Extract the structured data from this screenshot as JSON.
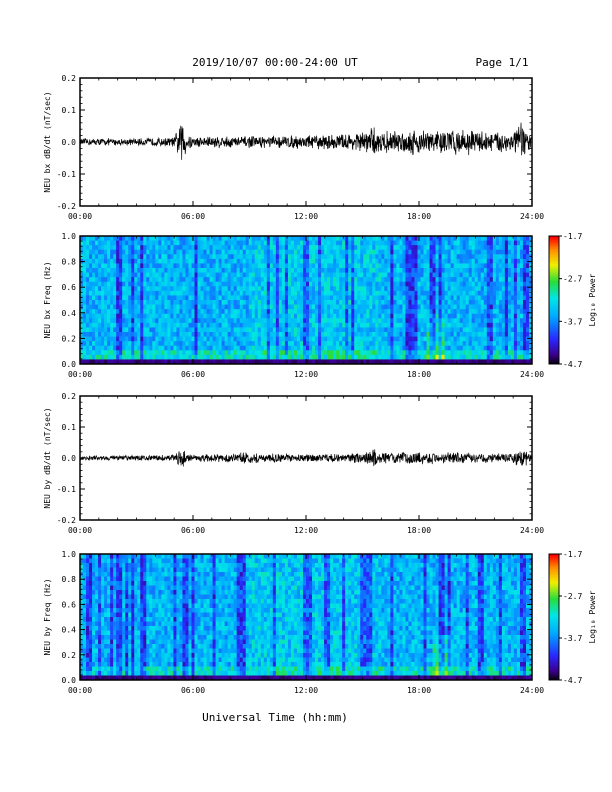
{
  "header": {
    "title": "2019/10/07  00:00-24:00 UT",
    "page": "Page 1/1"
  },
  "footer": {
    "xlabel": "Universal Time (hh:mm)"
  },
  "chart_data": [
    {
      "type": "line",
      "ylabel": "NEU bx dB/dt (nT/sec)",
      "ylim": [
        -0.2,
        0.2
      ],
      "yticks": [
        "0.2",
        "0.1",
        "0.0",
        "-0.1",
        "-0.2"
      ],
      "xticks": [
        "00:00",
        "06:00",
        "12:00",
        "18:00",
        "24:00"
      ],
      "xlim_hours": [
        0,
        24
      ],
      "envelope": {
        "x_hours": [
          0,
          1,
          2,
          3,
          4,
          5,
          5.5,
          5.6,
          6,
          7,
          8,
          9,
          10,
          11,
          12,
          13,
          14,
          15,
          15.6,
          16,
          17,
          18,
          19,
          20,
          21,
          22,
          23,
          23.5,
          24
        ],
        "amplitude": [
          0.012,
          0.013,
          0.012,
          0.012,
          0.014,
          0.016,
          0.09,
          0.04,
          0.018,
          0.022,
          0.02,
          0.02,
          0.02,
          0.022,
          0.024,
          0.025,
          0.028,
          0.035,
          0.05,
          0.035,
          0.04,
          0.045,
          0.04,
          0.045,
          0.04,
          0.035,
          0.04,
          0.07,
          0.02
        ]
      }
    },
    {
      "type": "heatmap",
      "ylabel": "NEU bx Freq (Hz)",
      "ylim": [
        0.0,
        1.0
      ],
      "yticks": [
        "1.0",
        "0.8",
        "0.6",
        "0.4",
        "0.2",
        "0.0"
      ],
      "xticks": [
        "00:00",
        "06:00",
        "12:00",
        "18:00",
        "24:00"
      ],
      "colorbar": {
        "label": "Log₁₀ Power",
        "range": [
          -4.7,
          -1.7
        ],
        "ticks": [
          "-1.7",
          "-2.7",
          "-3.7",
          "-4.7"
        ]
      },
      "features": [
        {
          "x_hours": 18.9,
          "freq_max": 0.4,
          "log_power": -3.0
        }
      ]
    },
    {
      "type": "line",
      "ylabel": "NEU by dB/dt (nT/sec)",
      "ylim": [
        -0.2,
        0.2
      ],
      "yticks": [
        "0.2",
        "0.1",
        "0.0",
        "-0.1",
        "-0.2"
      ],
      "xticks": [
        "00:00",
        "06:00",
        "12:00",
        "18:00",
        "24:00"
      ],
      "xlim_hours": [
        0,
        24
      ],
      "envelope": {
        "x_hours": [
          0,
          1,
          2,
          3,
          4,
          5,
          5.5,
          5.6,
          6,
          7,
          8,
          9,
          10,
          11,
          12,
          13,
          14,
          15,
          15.6,
          16,
          17,
          18,
          19,
          20,
          21,
          22,
          23,
          23.5,
          24
        ],
        "amplitude": [
          0.008,
          0.009,
          0.009,
          0.009,
          0.01,
          0.012,
          0.04,
          0.02,
          0.012,
          0.014,
          0.016,
          0.02,
          0.016,
          0.014,
          0.013,
          0.014,
          0.016,
          0.02,
          0.035,
          0.02,
          0.02,
          0.022,
          0.02,
          0.02,
          0.018,
          0.016,
          0.018,
          0.035,
          0.012
        ]
      }
    },
    {
      "type": "heatmap",
      "ylabel": "NEU by Freq (Hz)",
      "ylim": [
        0.0,
        1.0
      ],
      "yticks": [
        "1.0",
        "0.8",
        "0.6",
        "0.4",
        "0.2",
        "0.0"
      ],
      "xticks": [
        "00:00",
        "06:00",
        "12:00",
        "18:00",
        "24:00"
      ],
      "colorbar": {
        "label": "Log₁₀ Power",
        "range": [
          -4.7,
          -1.7
        ],
        "ticks": [
          "-1.7",
          "-2.7",
          "-3.7",
          "-4.7"
        ]
      },
      "features": [
        {
          "x_hours": 19.2,
          "freq_max": 0.35,
          "log_power": -3.0
        }
      ]
    }
  ]
}
